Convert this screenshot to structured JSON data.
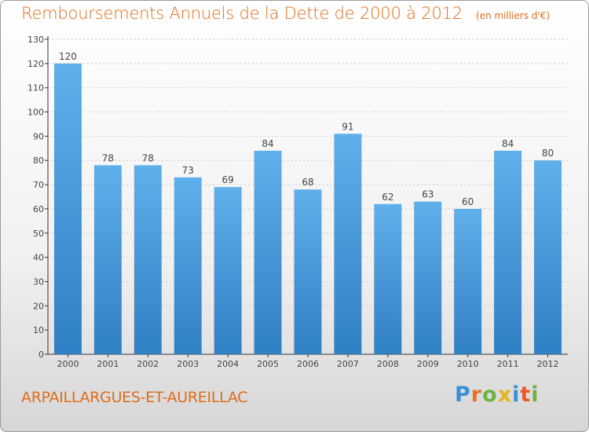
{
  "header": {
    "title": "Remboursements Annuels de la Dette de 2000 à 2012",
    "unit": "(en milliers d'€)"
  },
  "footer": {
    "commune": "ARPAILLARGUES-ET-AUREILLAC",
    "logo_letters": [
      "P",
      "r",
      "o",
      "x",
      "i",
      "t",
      "i"
    ],
    "logo_colors": [
      "#3a8fd6",
      "#e8702a",
      "#6cb33f",
      "#e8b31a",
      "#3a8fd6",
      "#e85a2a",
      "#6cb33f"
    ]
  },
  "colors": {
    "bar_top": "#5fb0ea",
    "bar_bottom": "#2f7fc4",
    "label": "#444444",
    "axis": "#333333",
    "grid": "#c8c8c8"
  },
  "chart_data": {
    "type": "bar",
    "categories": [
      "2000",
      "2001",
      "2002",
      "2003",
      "2004",
      "2005",
      "2006",
      "2007",
      "2008",
      "2009",
      "2010",
      "2011",
      "2012"
    ],
    "values": [
      120,
      78,
      78,
      73,
      69,
      84,
      68,
      91,
      62,
      63,
      60,
      84,
      80
    ],
    "ylim": [
      0,
      130
    ],
    "yticks": [
      0,
      10,
      20,
      30,
      40,
      50,
      60,
      70,
      80,
      90,
      100,
      110,
      120,
      130
    ],
    "grid": true,
    "legend": "none"
  }
}
